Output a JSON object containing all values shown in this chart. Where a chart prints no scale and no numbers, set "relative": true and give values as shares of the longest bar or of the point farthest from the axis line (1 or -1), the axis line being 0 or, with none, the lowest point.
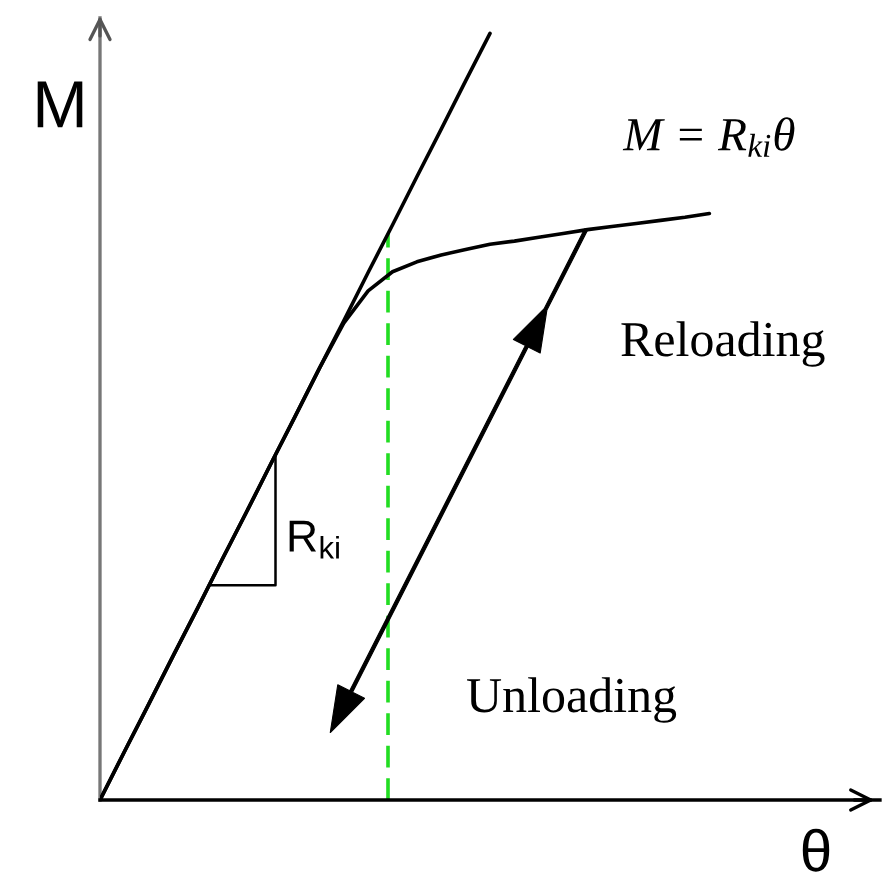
{
  "chart_data": {
    "type": "line",
    "relative": true,
    "xlabel": "θ",
    "ylabel": "M",
    "categories": [
      null,
      null,
      null,
      null,
      null,
      null,
      null,
      null,
      null,
      null,
      null,
      null,
      null,
      null,
      null,
      null,
      null,
      null,
      null,
      null,
      null,
      null,
      null,
      null,
      null,
      null,
      null,
      null,
      null,
      null,
      null,
      null,
      null
    ],
    "series": [
      {
        "name": "M = R$_{ki}$θ",
        "color": "#000000",
        "values": [
          0,
          0.063,
          0.125,
          0.188,
          0.25,
          0.313,
          0.375,
          0.438,
          0.5,
          0.563,
          0.625,
          0.688,
          0.75,
          0.813,
          0.875,
          0.938,
          1.0,
          null,
          null,
          null,
          null,
          null,
          null,
          null,
          null,
          null,
          null,
          null,
          null,
          null,
          null,
          null,
          null
        ]
      },
      {
        "color": "#000000",
        "values": [
          0,
          0.063,
          0.125,
          0.188,
          0.25,
          0.313,
          0.375,
          0.438,
          0.5,
          0.563,
          0.622,
          0.664,
          0.689,
          0.702,
          0.711,
          0.718,
          0.725,
          0.729,
          0.734,
          0.739,
          0.744,
          0.748,
          0.752,
          0.756,
          0.76,
          0.765,
          null,
          null,
          null,
          null,
          null,
          null,
          null
        ]
      }
    ],
    "annotations": [
      "R$_{ki}$",
      "Reloading",
      "Unloading"
    ]
  }
}
